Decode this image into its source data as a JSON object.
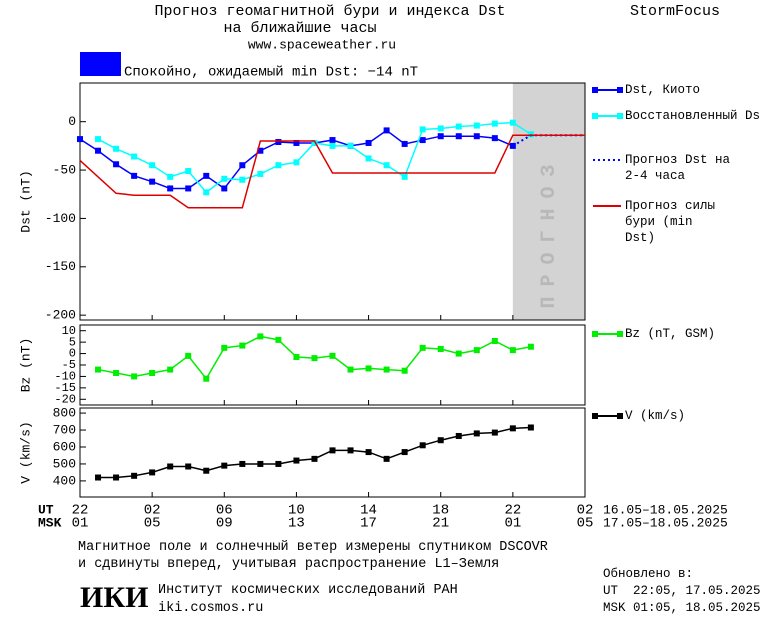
{
  "header": {
    "title": "Прогноз геомагнитной бури и индекса Dst",
    "subtitle": "на ближайшие часы",
    "url": "www.spaceweather.ru",
    "brand": "StormFocus",
    "status": "Спокойно, ожидаемый min Dst: −14 nT",
    "status_color": "#0000ff"
  },
  "chart_data": [
    {
      "type": "line",
      "ylabel": "Dst (nT)",
      "xlim": [
        0,
        28
      ],
      "ylim": [
        -205,
        40
      ],
      "yticks": [
        0,
        -50,
        -100,
        -150,
        -200
      ],
      "forecast_band": {
        "xlim": [
          24,
          28
        ],
        "label": "ПРОГНОЗ",
        "color": "#d3d3d3"
      },
      "series": [
        {
          "name": "Dst, Киото",
          "color": "#0000ff",
          "marker": "square",
          "style": "solid",
          "x": [
            0,
            1,
            2,
            3,
            4,
            5,
            6,
            7,
            8,
            9,
            10,
            11,
            12,
            13,
            14,
            15,
            16,
            17,
            18,
            19,
            20,
            21,
            22,
            23,
            24
          ],
          "values": [
            -18,
            -30,
            -44,
            -56,
            -62,
            -69,
            -69,
            -56,
            -69,
            -45,
            -30,
            -21,
            -22,
            -22,
            -19,
            -25,
            -22,
            -9,
            -23,
            -19,
            -15,
            -15,
            -15,
            -17,
            -25
          ]
        },
        {
          "name": "Восстановленный Dst",
          "color": "#00ffff",
          "marker": "square",
          "style": "solid",
          "x": [
            1,
            2,
            3,
            4,
            5,
            6,
            7,
            8,
            9,
            10,
            11,
            12,
            13,
            14,
            15,
            16,
            17,
            18,
            19,
            20,
            21,
            22,
            23,
            24,
            25
          ],
          "values": [
            -18,
            -28,
            -36,
            -45,
            -57,
            -51,
            -73,
            -59,
            -60,
            -54,
            -45,
            -42,
            -22,
            -25,
            -25,
            -38,
            -45,
            -57,
            -8,
            -7,
            -5,
            -4,
            -2,
            -1,
            -13
          ]
        },
        {
          "name": "Прогноз Dst на 2-4 часа",
          "color": "#0000ff",
          "marker": "none",
          "style": "dotted",
          "x": [
            24,
            25,
            28
          ],
          "values": [
            -25,
            -14,
            -14
          ]
        },
        {
          "name": "Прогноз силы бури (min Dst)",
          "color": "#dd0000",
          "marker": "none",
          "style": "solid",
          "x": [
            0,
            2,
            3,
            5,
            6,
            9,
            10,
            13,
            14,
            23,
            24,
            28
          ],
          "values": [
            -40,
            -74,
            -76,
            -76,
            -89,
            -89,
            -20,
            -20,
            -53,
            -53,
            -14,
            -14
          ]
        }
      ]
    },
    {
      "type": "line",
      "ylabel": "Bz (nT)",
      "xlim": [
        0,
        28
      ],
      "ylim": [
        -22.5,
        12.5
      ],
      "yticks": [
        10,
        5,
        0,
        -5,
        -10,
        -15,
        -20
      ],
      "series": [
        {
          "name": "Bz (nT, GSM)",
          "color": "#00ee00",
          "marker": "square",
          "style": "solid",
          "x": [
            1,
            2,
            3,
            4,
            5,
            6,
            7,
            8,
            9,
            10,
            11,
            12,
            13,
            14,
            15,
            16,
            17,
            18,
            19,
            20,
            21,
            22,
            23,
            24,
            25
          ],
          "values": [
            -7,
            -8.5,
            -10,
            -8.5,
            -7,
            -1,
            -11,
            2.5,
            3.5,
            7.5,
            6,
            -1.5,
            -2,
            -1,
            -7,
            -6.5,
            -7,
            -7.5,
            2.5,
            2,
            0,
            1.5,
            5.5,
            1.5,
            3
          ]
        }
      ]
    },
    {
      "type": "line",
      "ylabel": "V (km/s)",
      "xlim": [
        0,
        28
      ],
      "ylim": [
        305,
        830
      ],
      "yticks": [
        800,
        700,
        600,
        500,
        400
      ],
      "series": [
        {
          "name": "V (km/s)",
          "color": "#000000",
          "marker": "square",
          "style": "solid",
          "x": [
            1,
            2,
            3,
            4,
            5,
            6,
            7,
            8,
            9,
            10,
            11,
            12,
            13,
            14,
            15,
            16,
            17,
            18,
            19,
            20,
            21,
            22,
            23,
            24,
            25
          ],
          "values": [
            420,
            420,
            430,
            450,
            485,
            485,
            460,
            490,
            500,
            500,
            500,
            520,
            530,
            580,
            580,
            570,
            530,
            570,
            610,
            640,
            665,
            680,
            685,
            710,
            715
          ]
        }
      ]
    }
  ],
  "time_axis": {
    "ut": {
      "label": "UT",
      "range": "16.05–18.05.2025",
      "ticks": [
        {
          "value": 0,
          "label": "22"
        },
        {
          "value": 4,
          "label": "02"
        },
        {
          "value": 8,
          "label": "06"
        },
        {
          "value": 12,
          "label": "10"
        },
        {
          "value": 16,
          "label": "14"
        },
        {
          "value": 20,
          "label": "18"
        },
        {
          "value": 24,
          "label": "22"
        },
        {
          "value": 28,
          "label": "02"
        }
      ]
    },
    "msk": {
      "label": "MSK",
      "range": "17.05–18.05.2025",
      "ticks": [
        {
          "value": 0,
          "label": "01"
        },
        {
          "value": 4,
          "label": "05"
        },
        {
          "value": 8,
          "label": "09"
        },
        {
          "value": 12,
          "label": "13"
        },
        {
          "value": 16,
          "label": "17"
        },
        {
          "value": 20,
          "label": "21"
        },
        {
          "value": 24,
          "label": "01"
        },
        {
          "value": 28,
          "label": "05"
        }
      ]
    }
  },
  "footer": {
    "note_line1": "Магнитное поле и солнечный ветер измерены спутником DSCOVR",
    "note_line2": "и сдвинуты вперед, учитывая распространение L1–Земля",
    "logo": "ИКИ",
    "institute": "Институт космических исследований РАН",
    "site": "iki.cosmos.ru",
    "updated_label": "Обновлено в:",
    "updated_ut": "UT  22:05, 17.05.2025",
    "updated_msk": "MSK 01:05, 18.05.2025"
  }
}
